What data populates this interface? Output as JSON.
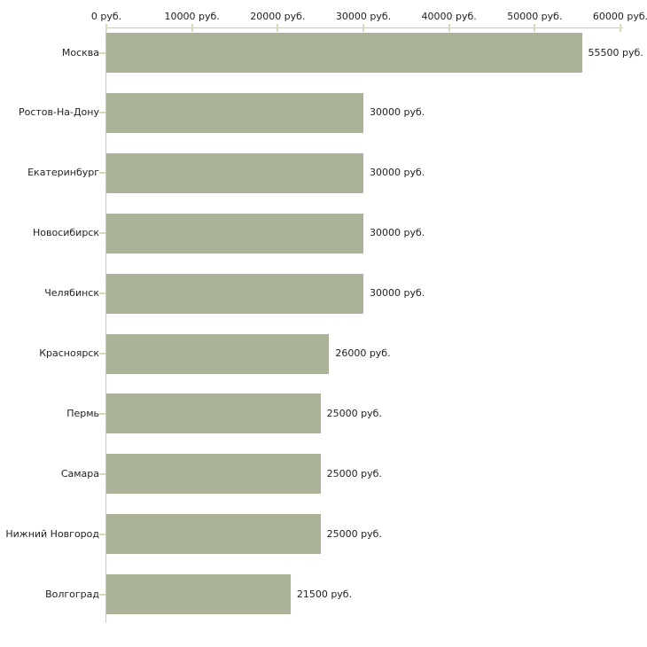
{
  "chart_data": {
    "type": "bar",
    "orientation": "horizontal",
    "title": "",
    "xlabel": "",
    "ylabel": "",
    "grid": false,
    "legend": "none",
    "xlim": [
      0,
      60000
    ],
    "x_ticks": [
      0,
      10000,
      20000,
      30000,
      40000,
      50000,
      60000
    ],
    "x_tick_labels": [
      "0 руб.",
      "10000 руб.",
      "20000 руб.",
      "30000 руб.",
      "40000 руб.",
      "50000 руб.",
      "60000 руб."
    ],
    "categories": [
      "Москва",
      "Ростов-На-Дону",
      "Екатеринбург",
      "Новосибирск",
      "Челябинск",
      "Красноярск",
      "Пермь",
      "Самара",
      "Нижний Новгород",
      "Волгоград"
    ],
    "values": [
      55500,
      30000,
      30000,
      30000,
      30000,
      26000,
      25000,
      25000,
      25000,
      21500
    ],
    "value_labels": [
      "55500 руб.",
      "30000 руб.",
      "30000 руб.",
      "30000 руб.",
      "30000 руб.",
      "26000 руб.",
      "25000 руб.",
      "25000 руб.",
      "25000 руб.",
      "21500 руб."
    ],
    "colors": {
      "bar": "#aab298",
      "axis_line": "#c9c9c9",
      "tick": "#d8dbba",
      "text": "#222222",
      "background": "#ffffff"
    }
  }
}
